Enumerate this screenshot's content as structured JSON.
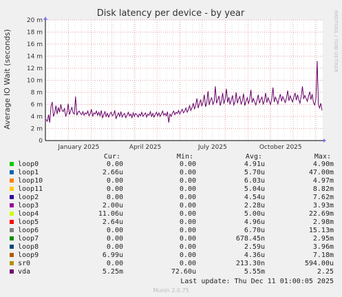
{
  "chart_data": {
    "type": "line",
    "title": "Disk latency per device - by year",
    "ylabel": "Average IO Wait (seconds)",
    "side_label": "RRDTOOL / TOBI OETIKER",
    "y_ticks": [
      "0",
      "2 m",
      "4 m",
      "6 m",
      "8 m",
      "10 m",
      "12 m",
      "14 m",
      "16 m",
      "18 m",
      "20 m"
    ],
    "ylim": [
      0,
      0.02
    ],
    "x_ticks": [
      "January 2025",
      "April 2025",
      "July 2025",
      "October 2025"
    ],
    "grid": true,
    "colors": {
      "background": "#f0f0f0",
      "plot": "#ffffff",
      "grid_major": "#e8a0a0",
      "grid_minor": "#e0e0e0",
      "vda": "#660066"
    },
    "series_vda_ms": [
      3.5,
      3.2,
      4.3,
      3.0,
      5.6,
      6.4,
      4.0,
      4.6,
      5.8,
      4.4,
      5.5,
      4.7,
      6.0,
      5.0,
      4.8,
      5.4,
      4.0,
      4.6,
      6.1,
      4.3,
      4.9,
      5.5,
      4.6,
      4.4,
      7.3,
      4.2,
      4.7,
      4.9,
      4.5,
      4.3,
      4.8,
      4.2,
      4.6,
      4.4,
      4.9,
      4.1,
      4.5,
      5.2,
      4.0,
      4.6,
      4.4,
      4.9,
      4.2,
      4.7,
      4.1,
      5.0,
      3.8,
      4.3,
      4.8,
      4.0,
      4.5,
      3.9,
      4.4,
      4.7,
      4.1,
      4.3,
      5.0,
      3.6,
      4.2,
      4.6,
      4.0,
      4.8,
      3.9,
      4.3,
      4.5,
      3.8,
      4.2,
      4.7,
      4.1,
      4.4,
      3.8,
      4.6,
      4.0,
      4.5,
      4.3,
      3.9,
      4.4,
      4.1,
      4.7,
      4.0,
      4.3,
      4.6,
      3.9,
      4.4,
      4.2,
      4.8,
      4.0,
      4.5,
      3.9,
      4.3,
      4.7,
      4.1,
      4.6,
      4.0,
      4.4,
      4.9,
      4.2,
      4.5,
      4.1,
      4.8,
      3.0,
      4.4,
      4.0,
      4.6,
      4.9,
      4.3,
      4.7,
      4.5,
      5.0,
      4.4,
      4.8,
      5.2,
      4.6,
      4.9,
      5.4,
      4.7,
      5.1,
      5.8,
      5.0,
      5.5,
      6.2,
      5.2,
      5.9,
      7.0,
      5.4,
      6.1,
      6.8,
      5.7,
      6.4,
      7.6,
      5.6,
      6.3,
      8.2,
      5.9,
      6.7,
      7.1,
      6.0,
      6.5,
      9.0,
      6.2,
      6.8,
      7.4,
      5.8,
      6.6,
      7.9,
      6.1,
      6.9,
      8.6,
      6.3,
      7.2,
      6.0,
      6.7,
      7.5,
      5.9,
      6.4,
      8.0,
      6.2,
      6.9,
      7.3,
      6.0,
      6.6,
      7.8,
      5.8,
      6.5,
      7.1,
      6.1,
      6.8,
      8.4,
      6.3,
      7.0,
      6.4,
      5.9,
      6.7,
      7.6,
      6.2,
      6.8,
      7.2,
      6.0,
      6.6,
      7.9,
      6.3,
      7.1,
      6.5,
      6.0,
      6.9,
      8.8,
      6.4,
      7.2,
      6.7,
      6.1,
      7.0,
      7.7,
      6.5,
      7.3,
      6.8,
      6.3,
      7.1,
      8.3,
      6.6,
      7.4,
      6.9,
      6.4,
      7.2,
      7.9,
      6.7,
      7.6,
      6.8,
      6.2,
      7.3,
      9.0,
      6.9,
      7.5,
      7.0,
      6.5,
      7.4,
      8.1,
      6.8,
      7.7,
      6.3,
      5.9,
      6.9,
      13.2,
      6.0,
      5.4,
      6.2,
      5.0
    ]
  },
  "legend": {
    "headers": {
      "cur": "Cur:",
      "min": "Min:",
      "avg": "Avg:",
      "max": "Max:"
    },
    "rows": [
      {
        "name": "loop0",
        "color": "#00cc00",
        "cur": "0.00",
        "min": "0.00",
        "avg": "4.91u",
        "max": "4.90m"
      },
      {
        "name": "loop1",
        "color": "#0066b3",
        "cur": "2.66u",
        "min": "0.00",
        "avg": "5.70u",
        "max": "47.00m"
      },
      {
        "name": "loop10",
        "color": "#ff8000",
        "cur": "0.00",
        "min": "0.00",
        "avg": "6.03u",
        "max": "4.97m"
      },
      {
        "name": "loop11",
        "color": "#ffcc00",
        "cur": "0.00",
        "min": "0.00",
        "avg": "5.04u",
        "max": "8.82m"
      },
      {
        "name": "loop2",
        "color": "#330099",
        "cur": "0.00",
        "min": "0.00",
        "avg": "4.54u",
        "max": "7.62m"
      },
      {
        "name": "loop3",
        "color": "#990099",
        "cur": "2.00u",
        "min": "0.00",
        "avg": "2.28u",
        "max": "3.93m"
      },
      {
        "name": "loop4",
        "color": "#ccff00",
        "cur": "11.06u",
        "min": "0.00",
        "avg": "5.00u",
        "max": "22.69m"
      },
      {
        "name": "loop5",
        "color": "#ff0000",
        "cur": "2.64u",
        "min": "0.00",
        "avg": "4.96u",
        "max": "2.98m"
      },
      {
        "name": "loop6",
        "color": "#808080",
        "cur": "0.00",
        "min": "0.00",
        "avg": "6.70u",
        "max": "15.13m"
      },
      {
        "name": "loop7",
        "color": "#008f00",
        "cur": "0.00",
        "min": "0.00",
        "avg": "678.45n",
        "max": "2.95m"
      },
      {
        "name": "loop8",
        "color": "#00487d",
        "cur": "0.00",
        "min": "0.00",
        "avg": "2.59u",
        "max": "3.96m"
      },
      {
        "name": "loop9",
        "color": "#b35a00",
        "cur": "6.99u",
        "min": "0.00",
        "avg": "4.36u",
        "max": "7.18m"
      },
      {
        "name": "sr0",
        "color": "#b38f00",
        "cur": "0.00",
        "min": "0.00",
        "avg": "213.30n",
        "max": "594.00u"
      },
      {
        "name": "vda",
        "color": "#6b006b",
        "cur": "5.25m",
        "min": "72.60u",
        "avg": "5.55m",
        "max": "2.25"
      }
    ]
  },
  "footer": {
    "last_update": "Last update: Thu Dec 11 01:00:05 2025",
    "version": "Munin 2.0.75"
  }
}
